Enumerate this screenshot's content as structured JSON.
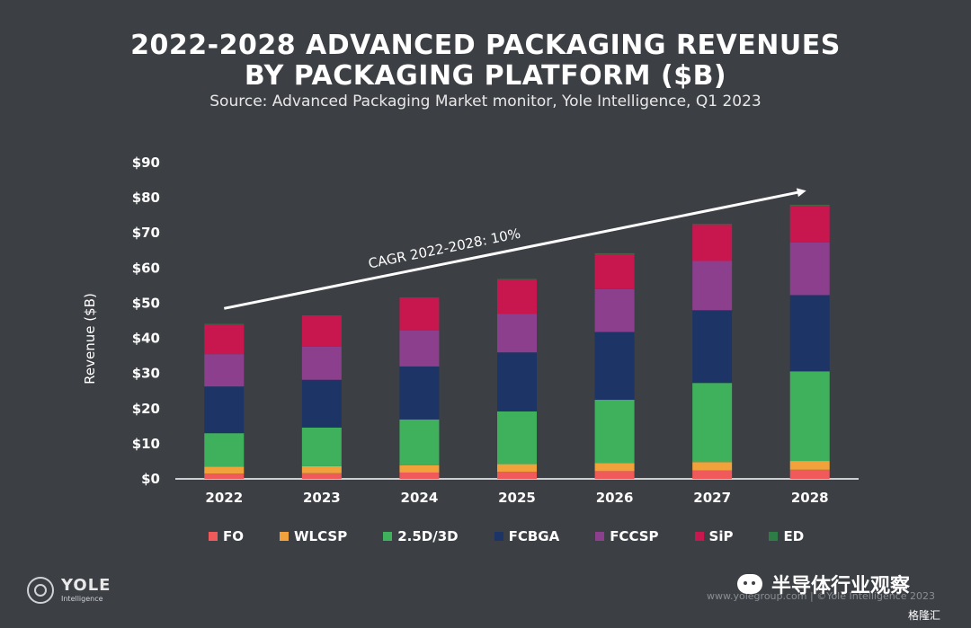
{
  "header": {
    "title_line1": "2022-2028 ADVANCED PACKAGING REVENUES",
    "title_line2": "BY PACKAGING PLATFORM ($B)",
    "subtitle": "Source: Advanced Packaging Market monitor, Yole Intelligence, Q1 2023"
  },
  "chart_data": {
    "type": "bar",
    "stacked": true,
    "categories": [
      "2022",
      "2023",
      "2024",
      "2025",
      "2026",
      "2027",
      "2028"
    ],
    "ylabel": "Revenue ($B)",
    "ylim": [
      0,
      90
    ],
    "yticks": [
      0,
      10,
      20,
      30,
      40,
      50,
      60,
      70,
      80,
      90
    ],
    "ytick_labels": [
      "$0",
      "$10",
      "$20",
      "$30",
      "$40",
      "$50",
      "$60",
      "$70",
      "$80",
      "$90"
    ],
    "legend_position": "bottom",
    "series": [
      {
        "name": "FO",
        "color": "#f05a5a",
        "values": [
          1.5,
          1.6,
          1.8,
          2.0,
          2.2,
          2.4,
          2.6
        ]
      },
      {
        "name": "WLCSP",
        "color": "#f2a23a",
        "values": [
          2.0,
          2.0,
          2.1,
          2.2,
          2.3,
          2.4,
          2.5
        ]
      },
      {
        "name": "2.5D/3D",
        "color": "#3fb15c",
        "values": [
          9.5,
          11.0,
          13.0,
          15.0,
          18.0,
          22.5,
          25.5
        ]
      },
      {
        "name": "FCBGA",
        "color": "#1d3566",
        "values": [
          13.3,
          13.6,
          15.1,
          16.8,
          19.3,
          20.7,
          21.7
        ]
      },
      {
        "name": "FCCSP",
        "color": "#8c3f8c",
        "values": [
          9.2,
          9.4,
          10.2,
          11.0,
          12.2,
          14.0,
          15.0
        ]
      },
      {
        "name": "SiP",
        "color": "#c8174f",
        "values": [
          8.5,
          8.8,
          9.3,
          9.8,
          10.0,
          10.3,
          10.5
        ]
      },
      {
        "name": "ED",
        "color": "#2e7d46",
        "values": [
          0.1,
          0.1,
          0.1,
          0.1,
          0.2,
          0.2,
          0.2
        ]
      }
    ],
    "annotation": {
      "text": "CAGR 2022-2028: 10%",
      "arrow_from": {
        "x": "2022",
        "y": 48.5
      },
      "arrow_to": {
        "x": "2028",
        "y": 82
      }
    }
  },
  "branding": {
    "logo_name": "YOLE",
    "logo_sub": "Intelligence",
    "footer": "www.yolegroup.com | ©Yole Intelligence 2023",
    "wechat_label": "半导体行业观察",
    "watermark": "格隆汇"
  }
}
